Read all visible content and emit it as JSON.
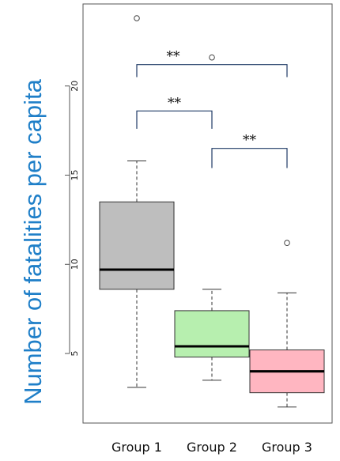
{
  "chart_data": {
    "type": "boxplot",
    "ylabel": "Number of fatalities per capita",
    "ylim": [
      1.1,
      24.6
    ],
    "yticks": [
      5,
      10,
      15,
      20
    ],
    "ytick_labels": [
      "5",
      "10",
      "15",
      "20"
    ],
    "categories": [
      "Group 1",
      "Group 2",
      "Group 3"
    ],
    "boxes": [
      {
        "name": "Group 1",
        "whisker_low": 3.1,
        "q1": 8.6,
        "median": 9.7,
        "q3": 13.5,
        "whisker_high": 15.8,
        "outliers": [
          23.8
        ],
        "color": "#bebebe"
      },
      {
        "name": "Group 2",
        "whisker_low": 3.5,
        "q1": 4.8,
        "median": 5.4,
        "q3": 7.4,
        "whisker_high": 8.6,
        "outliers": [
          21.6
        ],
        "color": "#b7efaf"
      },
      {
        "name": "Group 3",
        "whisker_low": 2.0,
        "q1": 2.8,
        "median": 4.0,
        "q3": 5.2,
        "whisker_high": 8.4,
        "outliers": [
          11.2
        ],
        "color": "#ffb6c1"
      }
    ],
    "significance": [
      {
        "from": "Group 1",
        "to": "Group 3",
        "y_top": 21.2,
        "y_bottom": 20.5,
        "label": "**"
      },
      {
        "from": "Group 1",
        "to": "Group 2",
        "y_top": 18.6,
        "y_bottom": 17.6,
        "label": "**"
      },
      {
        "from": "Group 2",
        "to": "Group 3",
        "y_top": 16.5,
        "y_bottom": 15.4,
        "label": "**"
      }
    ],
    "grid": false
  }
}
